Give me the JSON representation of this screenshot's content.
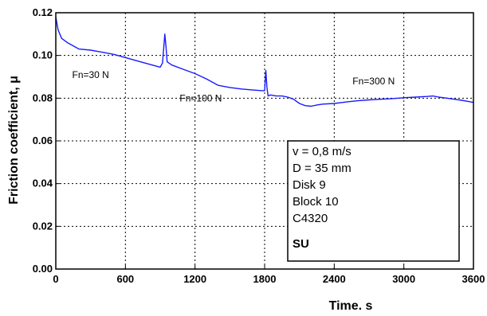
{
  "chart_data": {
    "type": "line",
    "xlabel": "Time. s",
    "ylabel": "Friction coefficient, μ",
    "xlim": [
      0,
      3600
    ],
    "ylim": [
      0,
      0.12
    ],
    "x_ticks": [
      "0",
      "600",
      "1200",
      "1800",
      "2400",
      "3000",
      "3600"
    ],
    "y_ticks": [
      "0.00",
      "0.02",
      "0.04",
      "0.06",
      "0.08",
      "0.10",
      "0.12"
    ],
    "grid": true,
    "series_color": "#1a1aff",
    "series": [
      {
        "x": [
          0,
          20,
          50,
          100,
          200,
          300,
          400,
          500,
          600,
          700,
          800,
          900,
          920,
          940,
          950,
          960,
          1000,
          1100,
          1200,
          1300,
          1400,
          1500,
          1600,
          1700,
          1780,
          1800,
          1810,
          1815,
          1820,
          1830,
          1850,
          1900,
          1950,
          2000,
          2050,
          2100,
          2150,
          2200,
          2250,
          2300,
          2400,
          2500,
          2600,
          2700,
          2800,
          2900,
          3000,
          3100,
          3200,
          3250,
          3300,
          3400,
          3500,
          3600
        ],
        "y": [
          0.118,
          0.112,
          0.108,
          0.106,
          0.103,
          0.1025,
          0.1015,
          0.1005,
          0.099,
          0.0975,
          0.096,
          0.0945,
          0.0965,
          0.11,
          0.104,
          0.097,
          0.0955,
          0.0935,
          0.0915,
          0.089,
          0.086,
          0.085,
          0.0843,
          0.0838,
          0.0835,
          0.0835,
          0.093,
          0.089,
          0.085,
          0.081,
          0.0815,
          0.081,
          0.081,
          0.0805,
          0.0795,
          0.0775,
          0.0765,
          0.0762,
          0.0768,
          0.0772,
          0.0775,
          0.0782,
          0.0788,
          0.0792,
          0.0795,
          0.0798,
          0.0802,
          0.0805,
          0.0808,
          0.081,
          0.0805,
          0.0798,
          0.079,
          0.078
        ]
      }
    ],
    "annotations": [
      {
        "text": "Fn=30 N",
        "x": 300,
        "y": 0.0895
      },
      {
        "text": "Fn=100 N",
        "x": 1250,
        "y": 0.0785
      },
      {
        "text": "Fn=300 N",
        "x": 2740,
        "y": 0.0865
      }
    ],
    "info_box": {
      "lines": [
        "v = 0,8 m/s",
        "D = 35 mm",
        "Disk 9",
        "Block 10",
        "C4320"
      ],
      "label": "SU"
    }
  }
}
